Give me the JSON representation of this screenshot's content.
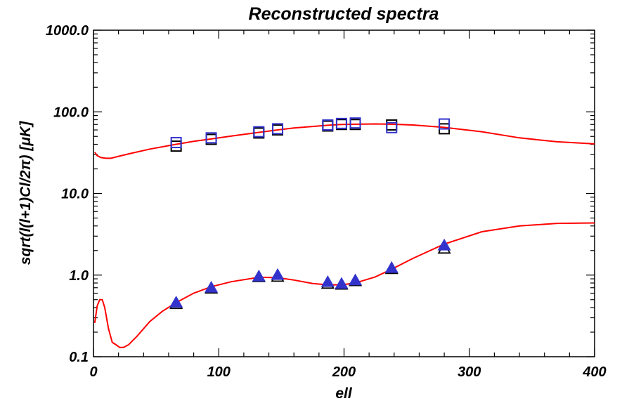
{
  "chart_data": {
    "type": "scatter",
    "title": "Reconstructed spectra",
    "xlabel": "ell",
    "ylabel": "sqrt(l(l+1)Cl/2π) [μK]",
    "xlim": [
      0,
      400
    ],
    "ylim": [
      0.1,
      1000
    ],
    "yscale": "log",
    "grid": false,
    "x_ticks": [
      {
        "value": 0,
        "label": "0"
      },
      {
        "value": 100,
        "label": "100"
      },
      {
        "value": 200,
        "label": "200"
      },
      {
        "value": 300,
        "label": "300"
      },
      {
        "value": 400,
        "label": "400"
      }
    ],
    "y_ticks": [
      {
        "value": 0.1,
        "label": "0.1"
      },
      {
        "value": 1,
        "label": "1.0"
      },
      {
        "value": 10,
        "label": "10.0"
      },
      {
        "value": 100,
        "label": "100.0"
      },
      {
        "value": 1000,
        "label": "1000.0"
      }
    ],
    "series": [
      {
        "marker": "line",
        "color": "#ff0000",
        "x": [
          1,
          3,
          6,
          10,
          14,
          20,
          30,
          45,
          66,
          80,
          94,
          110,
          132,
          147,
          160,
          187,
          198,
          209,
          225,
          238,
          255,
          280,
          310,
          340,
          370,
          400
        ],
        "y": [
          32,
          29,
          27.5,
          27,
          27,
          28.5,
          31,
          35,
          40,
          43.5,
          46.5,
          50.5,
          56,
          60,
          63.5,
          68.5,
          70,
          70.5,
          71,
          70.5,
          69,
          64.5,
          57,
          48,
          43,
          40.5
        ]
      },
      {
        "marker": "line",
        "color": "#ff0000",
        "x": [
          1,
          3,
          5,
          7,
          9,
          12,
          15,
          18,
          21,
          24,
          28,
          35,
          45,
          55,
          66,
          80,
          94,
          110,
          132,
          147,
          160,
          175,
          187,
          198,
          209,
          225,
          238,
          255,
          280,
          310,
          340,
          370,
          400
        ],
        "y": [
          0.26,
          0.42,
          0.5,
          0.5,
          0.4,
          0.22,
          0.15,
          0.14,
          0.13,
          0.13,
          0.14,
          0.18,
          0.27,
          0.36,
          0.46,
          0.6,
          0.72,
          0.83,
          0.94,
          0.93,
          0.87,
          0.79,
          0.76,
          0.76,
          0.8,
          0.95,
          1.18,
          1.6,
          2.4,
          3.4,
          4.0,
          4.3,
          4.35
        ]
      },
      {
        "marker": "square",
        "color": "#000000",
        "x": [
          66,
          94,
          132,
          147,
          187,
          198,
          209,
          238,
          280
        ],
        "y": [
          38,
          46,
          55,
          60,
          67,
          70,
          70,
          69,
          62
        ]
      },
      {
        "marker": "square",
        "color": "#3333cc",
        "x": [
          66,
          94,
          132,
          147,
          187,
          198,
          209,
          238,
          280
        ],
        "y": [
          42,
          48,
          57,
          62,
          69,
          72,
          73,
          64,
          71
        ]
      },
      {
        "marker": "triangle",
        "color": "#000000",
        "x": [
          66,
          94,
          132,
          147,
          187,
          198,
          209,
          238,
          280
        ],
        "y": [
          0.44,
          0.68,
          0.94,
          0.95,
          0.78,
          0.76,
          0.84,
          1.18,
          2.1
        ]
      },
      {
        "marker": "triangle",
        "color": "#3333cc",
        "x": [
          66,
          94,
          132,
          147,
          187,
          198,
          209,
          238,
          280
        ],
        "y": [
          0.46,
          0.7,
          0.96,
          1.0,
          0.82,
          0.78,
          0.86,
          1.22,
          2.3
        ]
      }
    ]
  }
}
